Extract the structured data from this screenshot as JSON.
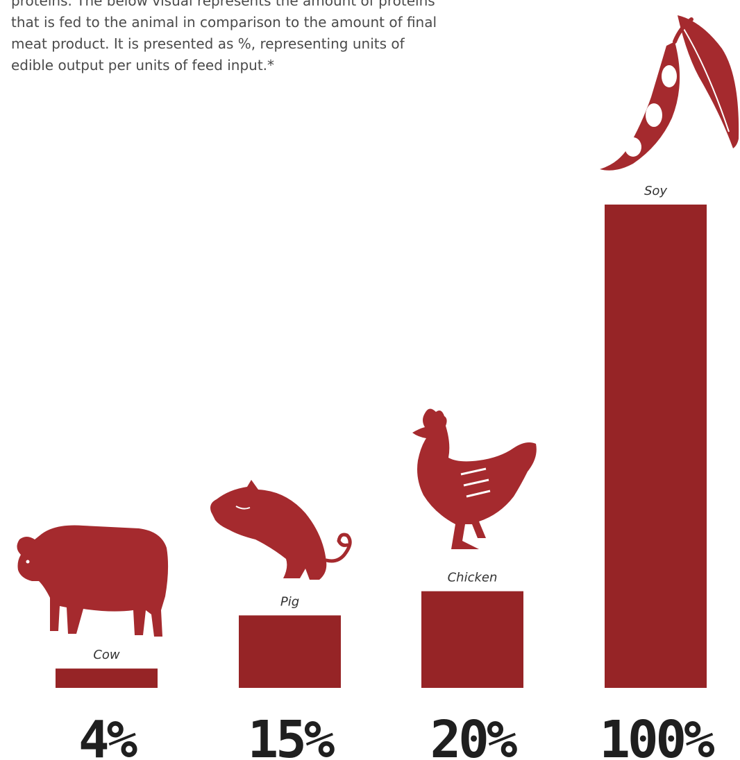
{
  "intro": {
    "lines": [
      "proteins. The below visual represents the amount of proteins",
      "that is fed to the animal in comparison to the amount of final",
      "meat product. It is presented as %, representing units of",
      "edible output per units of feed input.*"
    ]
  },
  "icons": [
    "cow-icon",
    "pig-icon",
    "chicken-icon",
    "soy-icon"
  ],
  "chart_data": {
    "type": "bar",
    "categories": [
      "Cow",
      "Pig",
      "Chicken",
      "Soy"
    ],
    "values": [
      4,
      15,
      20,
      100
    ],
    "value_labels": [
      "4%",
      "15%",
      "20%",
      "100%"
    ],
    "ylim": [
      0,
      100
    ],
    "colors": {
      "bar": "#962426",
      "icon": "#a52a2e"
    }
  }
}
